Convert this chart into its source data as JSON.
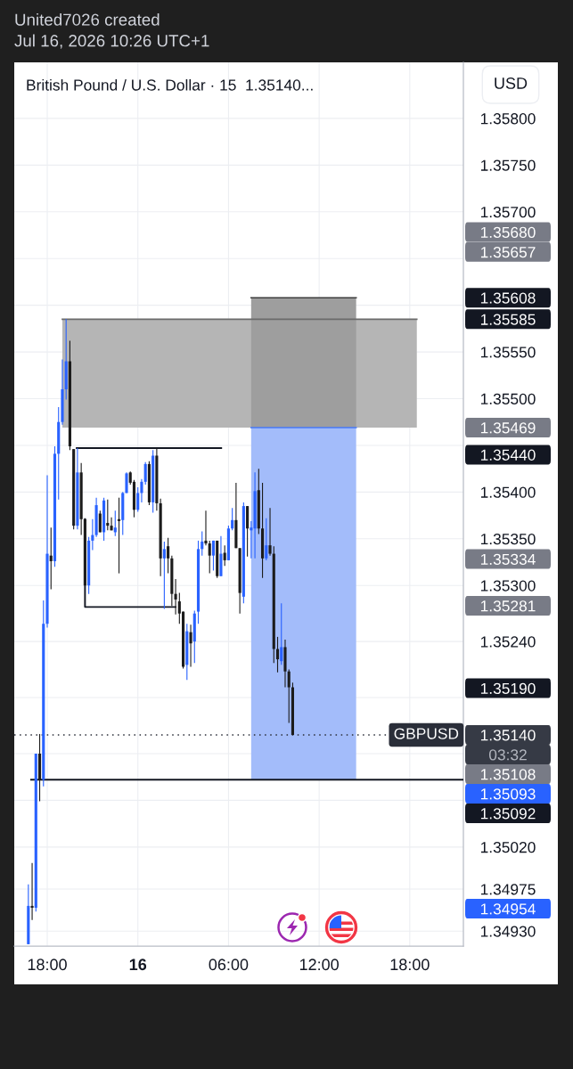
{
  "chart_data": {
    "type": "candlestick",
    "title": "United7026 created\nJul 16, 2026 10:26 UTC+1",
    "subtitle": "British Pound / U.S. Dollar · 15  1.35140...",
    "ylabel": "USD",
    "xlim": [
      "2026-07-15T15:49",
      "2026-07-16T21:33"
    ],
    "ylim": [
      1.34914,
      1.3586
    ],
    "xticks": [
      {
        "value": "2026-07-15T18:00",
        "label": "18:00"
      },
      {
        "value": "2026-07-16T00:00",
        "label": "16"
      },
      {
        "value": "2026-07-16T06:00",
        "label": "06:00"
      },
      {
        "value": "2026-07-16T12:00",
        "label": "12:00"
      },
      {
        "value": "2026-07-16T18:00",
        "label": "18:00"
      }
    ],
    "yticks": [
      {
        "value": 1.358,
        "label": "1.35800"
      },
      {
        "value": 1.3575,
        "label": "1.35750"
      },
      {
        "value": 1.357,
        "label": "1.35700"
      },
      {
        "value": 1.3565,
        "label": null
      },
      {
        "value": 1.356,
        "label": null
      },
      {
        "value": 1.3555,
        "label": "1.35550"
      },
      {
        "value": 1.355,
        "label": "1.35500"
      },
      {
        "value": 1.3545,
        "label": null
      },
      {
        "value": 1.354,
        "label": "1.35400"
      },
      {
        "value": 1.3535,
        "label": "1.35350"
      },
      {
        "value": 1.353,
        "label": "1.35300"
      },
      {
        "value": 1.3524,
        "label": "1.35240"
      },
      {
        "value": 1.3518,
        "label": null
      },
      {
        "value": 1.3512,
        "label": null
      },
      {
        "value": 1.3507,
        "label": null
      },
      {
        "value": 1.3502,
        "label": "1.35020"
      },
      {
        "value": 1.34975,
        "label": "1.34975"
      },
      {
        "value": 1.3493,
        "label": "1.34930"
      }
    ],
    "grid": true,
    "series": [
      {
        "type": "line",
        "x": [
          "2026-07-15T19:00",
          "2026-07-16T00:00",
          "2026-07-16T04:00",
          "2026-07-16T16:00",
          "2026-07-16T18:28"
        ],
        "values": [
          1.35585,
          1.35585,
          1.35585,
          1.35585,
          1.35585
        ],
        "lower": [
          1.35469,
          1.35469,
          1.35469,
          1.35469,
          1.35469
        ],
        "upper": [
          1.35585,
          1.35585,
          1.35585,
          1.35585,
          1.35585
        ],
        "color": "#6b6b6b"
      },
      {
        "type": "line",
        "x": [
          "2026-07-16T07:30",
          "2026-07-16T09:00",
          "2026-07-16T11:00",
          "2026-07-16T13:00",
          "2026-07-16T14:27"
        ],
        "values": [
          1.35608,
          1.35608,
          1.35608,
          1.35608,
          1.35608
        ],
        "lower": [
          1.35469,
          1.35469,
          1.35469,
          1.35469,
          1.35469
        ],
        "upper": [
          1.35608,
          1.35608,
          1.35608,
          1.35608,
          1.35608
        ],
        "color": "#3d3d3d"
      },
      {
        "type": "line",
        "x": [
          "2026-07-16T07:30",
          "2026-07-16T09:00",
          "2026-07-16T11:00",
          "2026-07-16T13:00",
          "2026-07-16T14:27"
        ],
        "values": [
          1.35469,
          1.35469,
          1.35469,
          1.35469,
          1.35469
        ],
        "lower": [
          1.35092,
          1.35092,
          1.35092,
          1.35092,
          1.35092
        ],
        "upper": [
          1.35469,
          1.35469,
          1.35469,
          1.35469,
          1.35469
        ],
        "color": "#4779f5"
      },
      {
        "type": "line",
        "x": [
          "2026-07-15T19:57",
          "2026-07-16T05:31"
        ],
        "values": [
          1.35447,
          1.35447
        ],
        "color": "#131722"
      },
      {
        "type": "line",
        "x": [
          "2026-07-15T20:30",
          "2026-07-15T20:30",
          "2026-07-16T02:30"
        ],
        "values": [
          1.35371,
          1.35277,
          1.35277
        ],
        "color": "#131722"
      },
      {
        "type": "line",
        "x": [
          "2026-07-15T16:56",
          "2026-07-16T21:33"
        ],
        "values": [
          1.35092,
          1.35092
        ],
        "color": "#131722"
      },
      {
        "x": [
          "2026-07-15T16:45",
          "2026-07-15T17:00",
          "2026-07-15T17:15",
          "2026-07-15T17:30",
          "2026-07-15T17:45",
          "2026-07-15T18:00",
          "2026-07-15T18:15",
          "2026-07-15T18:30",
          "2026-07-15T18:45",
          "2026-07-15T19:00",
          "2026-07-15T19:15",
          "2026-07-15T19:30",
          "2026-07-15T19:45",
          "2026-07-15T20:00",
          "2026-07-15T20:15",
          "2026-07-15T20:30",
          "2026-07-15T20:45",
          "2026-07-15T21:00",
          "2026-07-15T21:15",
          "2026-07-15T21:30",
          "2026-07-15T21:45",
          "2026-07-15T22:00",
          "2026-07-15T22:15",
          "2026-07-15T22:30",
          "2026-07-15T22:45",
          "2026-07-15T23:00",
          "2026-07-15T23:15",
          "2026-07-15T23:30",
          "2026-07-15T23:45",
          "2026-07-16T00:00",
          "2026-07-16T00:15",
          "2026-07-16T00:30",
          "2026-07-16T00:45",
          "2026-07-16T01:00",
          "2026-07-16T01:15",
          "2026-07-16T01:30",
          "2026-07-16T01:45",
          "2026-07-16T02:00",
          "2026-07-16T02:15",
          "2026-07-16T02:30",
          "2026-07-16T02:45",
          "2026-07-16T03:00",
          "2026-07-16T03:15",
          "2026-07-16T03:30",
          "2026-07-16T03:45",
          "2026-07-16T04:00",
          "2026-07-16T04:15",
          "2026-07-16T04:30",
          "2026-07-16T04:45",
          "2026-07-16T05:00",
          "2026-07-16T05:15",
          "2026-07-16T05:30",
          "2026-07-16T05:45",
          "2026-07-16T06:00",
          "2026-07-16T06:15",
          "2026-07-16T06:30",
          "2026-07-16T06:45",
          "2026-07-16T07:00",
          "2026-07-16T07:15",
          "2026-07-16T07:30",
          "2026-07-16T07:45",
          "2026-07-16T08:00",
          "2026-07-16T08:15",
          "2026-07-16T08:30",
          "2026-07-16T08:45",
          "2026-07-16T09:00",
          "2026-07-16T09:15",
          "2026-07-16T09:30",
          "2026-07-16T09:45",
          "2026-07-16T10:00",
          "2026-07-16T10:15"
        ],
        "ohlc": [
          [
            1.34916,
            1.3498,
            1.34916,
            1.34957
          ],
          [
            1.34957,
            1.35003,
            1.34942,
            1.34955
          ],
          [
            1.34955,
            1.3512,
            1.34951,
            1.3512
          ],
          [
            1.3512,
            1.35141,
            1.35069,
            1.35092
          ],
          [
            1.35092,
            1.35284,
            1.35085,
            1.35259
          ],
          [
            1.35259,
            1.35418,
            1.35255,
            1.35334
          ],
          [
            1.35332,
            1.35362,
            1.35296,
            1.35326
          ],
          [
            1.35326,
            1.35449,
            1.3532,
            1.35441
          ],
          [
            1.35441,
            1.35491,
            1.35392,
            1.35475
          ],
          [
            1.35475,
            1.35542,
            1.35472,
            1.3551
          ],
          [
            1.3551,
            1.35585,
            1.35499,
            1.3554
          ],
          [
            1.3554,
            1.35562,
            1.35445,
            1.35449
          ],
          [
            1.35446,
            1.35446,
            1.3536,
            1.35364
          ],
          [
            1.35364,
            1.35447,
            1.3536,
            1.35421
          ],
          [
            1.35421,
            1.35431,
            1.35354,
            1.35371
          ],
          [
            1.35371,
            1.35371,
            1.353,
            1.353
          ],
          [
            1.353,
            1.35352,
            1.35291,
            1.35348
          ],
          [
            1.35348,
            1.35371,
            1.35338,
            1.35354
          ],
          [
            1.35354,
            1.35394,
            1.35352,
            1.35386
          ],
          [
            1.35377,
            1.3538,
            1.35357,
            1.35357
          ],
          [
            1.35357,
            1.35394,
            1.35348,
            1.35391
          ],
          [
            1.35367,
            1.35392,
            1.35359,
            1.35364
          ],
          [
            1.35364,
            1.35373,
            1.35359,
            1.35359
          ],
          [
            1.35357,
            1.3538,
            1.35353,
            1.35362
          ],
          [
            1.35371,
            1.35394,
            1.35313,
            1.35369
          ],
          [
            1.3537,
            1.354,
            1.35354,
            1.35399
          ],
          [
            1.35399,
            1.35421,
            1.35399,
            1.3542
          ],
          [
            1.35421,
            1.35422,
            1.35408,
            1.3541
          ],
          [
            1.35411,
            1.35413,
            1.35373,
            1.35381
          ],
          [
            1.35381,
            1.35405,
            1.35379,
            1.35399
          ],
          [
            1.35399,
            1.35414,
            1.35389,
            1.35411
          ],
          [
            1.35411,
            1.35432,
            1.35408,
            1.3543
          ],
          [
            1.3543,
            1.35433,
            1.35386,
            1.35389
          ],
          [
            1.35389,
            1.35445,
            1.35378,
            1.35439
          ],
          [
            1.35439,
            1.35447,
            1.3538,
            1.35388
          ],
          [
            1.35388,
            1.35393,
            1.3531,
            1.35329
          ],
          [
            1.35329,
            1.35347,
            1.35275,
            1.35339
          ],
          [
            1.35342,
            1.35351,
            1.35313,
            1.35329
          ],
          [
            1.35329,
            1.35332,
            1.35278,
            1.35291
          ],
          [
            1.35291,
            1.35307,
            1.35269,
            1.35285
          ],
          [
            1.35283,
            1.35292,
            1.35259,
            1.3527
          ],
          [
            1.35272,
            1.35272,
            1.35211,
            1.35213
          ],
          [
            1.35215,
            1.35259,
            1.35199,
            1.35251
          ],
          [
            1.3525,
            1.35258,
            1.35213,
            1.35238
          ],
          [
            1.3524,
            1.35273,
            1.35217,
            1.3527
          ],
          [
            1.35272,
            1.35348,
            1.35259,
            1.35339
          ],
          [
            1.35339,
            1.35358,
            1.35332,
            1.35347
          ],
          [
            1.35348,
            1.3538,
            1.35343,
            1.35345
          ],
          [
            1.35345,
            1.35348,
            1.35313,
            1.35332
          ],
          [
            1.35332,
            1.35348,
            1.35316,
            1.35348
          ],
          [
            1.35348,
            1.35348,
            1.35308,
            1.3531
          ],
          [
            1.3531,
            1.35353,
            1.3531,
            1.35334
          ],
          [
            1.35335,
            1.35343,
            1.35321,
            1.35327
          ],
          [
            1.35327,
            1.35364,
            1.35327,
            1.35361
          ],
          [
            1.35361,
            1.35383,
            1.35359,
            1.3537
          ],
          [
            1.3537,
            1.3541,
            1.3534,
            1.3534
          ],
          [
            1.3534,
            1.3534,
            1.3527,
            1.35292
          ],
          [
            1.35288,
            1.35389,
            1.35281,
            1.35385
          ],
          [
            1.35385,
            1.35385,
            1.35331,
            1.35361
          ],
          [
            1.35359,
            1.35369,
            1.35329,
            1.35362
          ],
          [
            1.35361,
            1.35421,
            1.35329,
            1.35401
          ],
          [
            1.35402,
            1.35425,
            1.35355,
            1.35361
          ],
          [
            1.35361,
            1.3541,
            1.35308,
            1.35329
          ],
          [
            1.35329,
            1.35372,
            1.35327,
            1.35343
          ],
          [
            1.35343,
            1.35383,
            1.35332,
            1.35334
          ],
          [
            1.35334,
            1.35342,
            1.35217,
            1.35232
          ],
          [
            1.35232,
            1.35245,
            1.35207,
            1.35221
          ],
          [
            1.35219,
            1.35281,
            1.35215,
            1.35234
          ],
          [
            1.35234,
            1.35242,
            1.35191,
            1.35208
          ],
          [
            1.35208,
            1.3521,
            1.35153,
            1.35191
          ],
          [
            1.35191,
            1.35196,
            1.3514,
            1.3514
          ]
        ],
        "colors": [
          "#2962ff",
          "#1c1c1c",
          "#2962ff",
          "#1c1c1c",
          "#2962ff",
          "#2962ff",
          "#1c1c1c",
          "#2962ff",
          "#2962ff",
          "#2962ff",
          "#2962ff",
          "#1c1c1c",
          "#1c1c1c",
          "#2962ff",
          "#1c1c1c",
          "#1c1c1c",
          "#2962ff",
          "#2962ff",
          "#2962ff",
          "#1c1c1c",
          "#2962ff",
          "#1c1c1c",
          "#1c1c1c",
          "#2962ff",
          "#1c1c1c",
          "#2962ff",
          "#2962ff",
          "#1c1c1c",
          "#1c1c1c",
          "#2962ff",
          "#2962ff",
          "#2962ff",
          "#1c1c1c",
          "#2962ff",
          "#1c1c1c",
          "#1c1c1c",
          "#2962ff",
          "#1c1c1c",
          "#1c1c1c",
          "#1c1c1c",
          "#1c1c1c",
          "#1c1c1c",
          "#2962ff",
          "#1c1c1c",
          "#2962ff",
          "#2962ff",
          "#2962ff",
          "#1c1c1c",
          "#1c1c1c",
          "#2962ff",
          "#1c1c1c",
          "#2962ff",
          "#1c1c1c",
          "#2962ff",
          "#2962ff",
          "#1c1c1c",
          "#1c1c1c",
          "#2962ff",
          "#1c1c1c",
          "#2962ff",
          "#2962ff",
          "#1c1c1c",
          "#1c1c1c",
          "#2962ff",
          "#1c1c1c",
          "#1c1c1c",
          "#1c1c1c",
          "#2962ff",
          "#1c1c1c",
          "#1c1c1c",
          "#1c1c1c"
        ]
      }
    ],
    "ref_lines": [
      {
        "axis": "y",
        "value": 1.3514,
        "label": "GBPUSD",
        "line_style": "dotted",
        "color": "#2a2e39"
      }
    ],
    "annotations": [
      "1.35680",
      "1.35657",
      "1.35608",
      "1.35585",
      "1.35469",
      "1.35440",
      "1.35334",
      "1.35281",
      "1.35190",
      "1.35140",
      "03:32",
      "1.35108",
      "1.35093",
      "1.35092",
      "1.34954"
    ]
  }
}
